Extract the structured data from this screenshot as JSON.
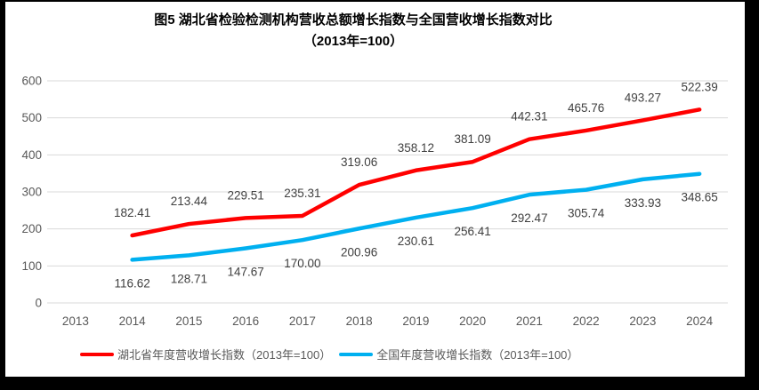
{
  "window": {
    "frame_color": "#000000",
    "panel_bg": "#FFFFFF"
  },
  "chart_data": {
    "type": "line",
    "title": "图5 湖北省检验检测机构营收总额增长指数与全国营收增长指数对比",
    "subtitle": "（2013年=100）",
    "categories": [
      "2013",
      "2014",
      "2015",
      "2016",
      "2017",
      "2018",
      "2019",
      "2020",
      "2021",
      "2022",
      "2023",
      "2024"
    ],
    "series": [
      {
        "name": "湖北省年度营收增长指数（2013年=100）",
        "color": "#FF0000",
        "start_category": "2014",
        "values": [
          182.41,
          213.44,
          229.51,
          235.31,
          319.06,
          358.12,
          381.09,
          442.31,
          465.76,
          493.27,
          522.39
        ],
        "labels": [
          "182.41",
          "213.44",
          "229.51",
          "235.31",
          "319.06",
          "358.12",
          "381.09",
          "442.31",
          "465.76",
          "493.27",
          "522.39"
        ],
        "label_position": "above"
      },
      {
        "name": "全国年度营收增长指数（2013年=100）",
        "color": "#00B0F0",
        "start_category": "2014",
        "values": [
          116.62,
          128.71,
          147.67,
          170.0,
          200.96,
          230.61,
          256.41,
          292.47,
          305.74,
          333.93,
          348.65
        ],
        "labels": [
          "116.62",
          "128.71",
          "147.67",
          "170.00",
          "200.96",
          "230.61",
          "256.41",
          "292.47",
          "305.74",
          "333.93",
          "348.65"
        ],
        "label_position": "below"
      }
    ],
    "y_ticks": [
      0,
      100,
      200,
      300,
      400,
      500,
      600
    ],
    "ylim": [
      0,
      600
    ],
    "grid": true,
    "legend_position": "bottom",
    "gridline_color": "#D9D9D9",
    "axis_label_color": "#595959",
    "data_label_color": "#404040",
    "title_color": "#000000",
    "legend_text_color": "#595959"
  }
}
